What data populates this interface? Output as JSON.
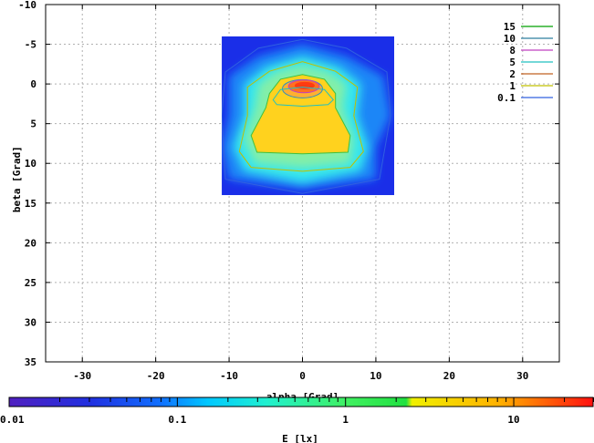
{
  "chart_data": {
    "type": "heatmap",
    "xlabel": "alpha [Grad]",
    "ylabel": "beta [Grad]",
    "xlim": [
      -35,
      35
    ],
    "ylim": [
      35,
      -10
    ],
    "y_inverted": true,
    "grid": true,
    "x_ticks": [
      -30,
      -20,
      -10,
      0,
      10,
      20,
      30
    ],
    "y_ticks": [
      -10,
      -5,
      0,
      5,
      10,
      15,
      20,
      25,
      30,
      35
    ],
    "data_extent": {
      "alpha": [
        -11,
        12.5
      ],
      "beta": [
        -6,
        14
      ]
    },
    "legend_position": "top-right",
    "contour_levels": [
      {
        "label": "15",
        "value": 15,
        "color": "#00a000"
      },
      {
        "label": "10",
        "value": 10,
        "color": "#2f7f9f"
      },
      {
        "label": "8",
        "value": 8,
        "color": "#c040c0"
      },
      {
        "label": "5",
        "value": 5,
        "color": "#20c0c0"
      },
      {
        "label": "2",
        "value": 2,
        "color": "#c06020"
      },
      {
        "label": "1",
        "value": 1,
        "color": "#c0c000"
      },
      {
        "label": "0.1",
        "value": 0.1,
        "color": "#3060e0"
      }
    ],
    "colorbar": {
      "label": "E [lx]",
      "scale": "log",
      "range": [
        0.01,
        30
      ],
      "tick_labels": [
        {
          "text": "0.01",
          "value": 0.01
        },
        {
          "text": "0.1",
          "value": 0.1
        },
        {
          "text": "1",
          "value": 1
        },
        {
          "text": "10",
          "value": 10
        }
      ]
    }
  }
}
